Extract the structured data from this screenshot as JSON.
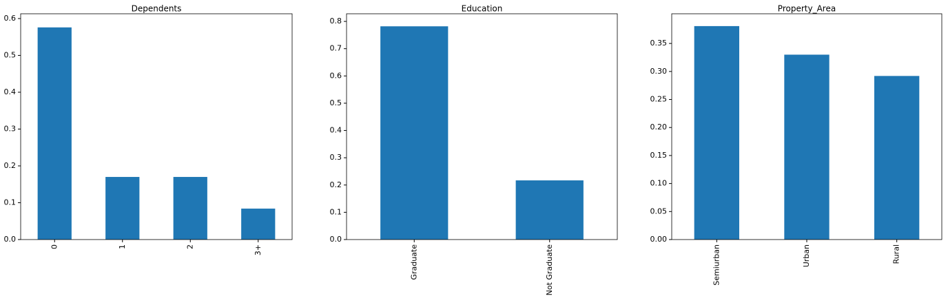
{
  "chart_data": [
    {
      "type": "bar",
      "title": "Dependents",
      "categories": [
        "0",
        "1",
        "2",
        "3+"
      ],
      "values": [
        0.576,
        0.17,
        0.17,
        0.084
      ],
      "color": "#1f77b4",
      "ylim": [
        0,
        0.613
      ],
      "yticks": [
        {
          "value": 0,
          "label": "0.0"
        },
        0.1,
        0.2,
        0.3,
        0.4,
        0.5,
        0.6
      ]
    },
    {
      "type": "bar",
      "title": "Education",
      "categories": [
        "Graduate",
        "Not Graduate"
      ],
      "values": [
        0.782,
        0.217
      ],
      "color": "#1f77b4",
      "ylim": [
        0,
        0.828
      ],
      "yticks": [
        {
          "value": 0,
          "label": "0.0"
        },
        0.1,
        0.2,
        0.3,
        0.4,
        0.5,
        0.6,
        0.7,
        0.8
      ]
    },
    {
      "type": "bar",
      "title": "Property_Area",
      "categories": [
        "Semiurban",
        "Urban",
        "Rural"
      ],
      "values": [
        0.381,
        0.33,
        0.292
      ],
      "color": "#1f77b4",
      "ylim": [
        0,
        0.403
      ],
      "yticks": [
        {
          "value": 0,
          "label": "0.00"
        },
        0.05,
        {
          "value": 0.1,
          "label": "0.10"
        },
        0.15,
        {
          "value": 0.2,
          "label": "0.20"
        },
        0.25,
        {
          "value": 0.3,
          "label": "0.30"
        },
        0.35
      ]
    }
  ]
}
